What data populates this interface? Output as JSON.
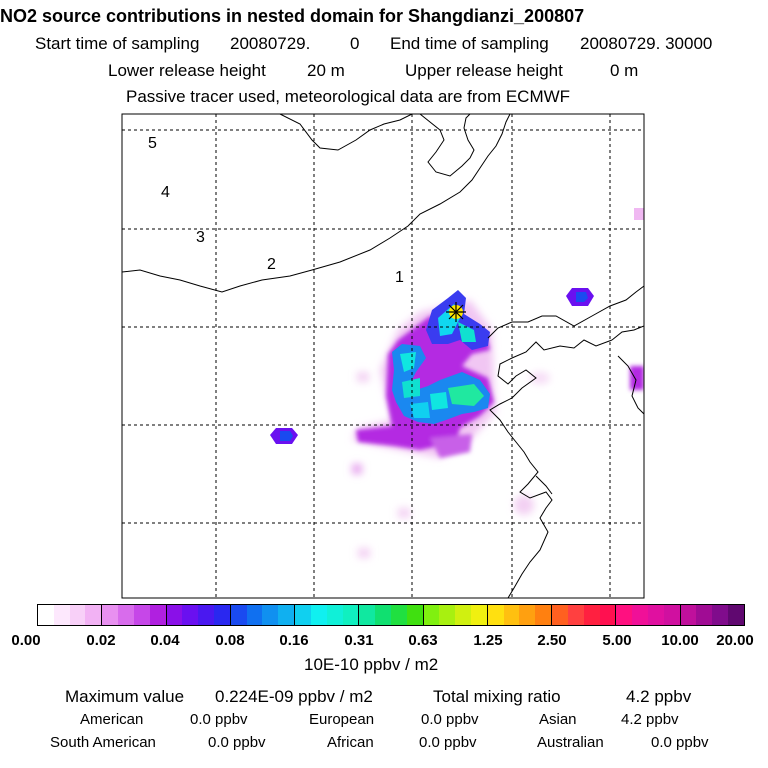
{
  "title": "NO2 source contributions in nested domain for Shangdianzi_200807",
  "header": {
    "start_label": "Start time of sampling",
    "start_value": "20080729.",
    "start_hour": "0",
    "end_label": "End time of sampling",
    "end_value": "20080729. 30000",
    "lower_label": "Lower release height",
    "lower_value": "20 m",
    "upper_label": "Upper release height",
    "upper_value": "0 m",
    "note": "Passive tracer used, meteorological data are from ECMWF"
  },
  "map": {
    "day_markers": [
      "1",
      "2",
      "3",
      "4",
      "5"
    ],
    "release_site_icon": "star-marker-icon"
  },
  "colorbar": {
    "tick_labels": [
      "0.00",
      "0.02",
      "0.04",
      "0.08",
      "0.16",
      "0.31",
      "0.63",
      "1.25",
      "2.50",
      "5.00",
      "10.00",
      "20.00"
    ],
    "unit": "10E-10 ppbv / m2",
    "segment_colors": [
      [
        "#ffffff",
        "#fde8fd",
        "#f8d0f8",
        "#f2b2f4"
      ],
      [
        "#e890f0",
        "#d86cec",
        "#c647e8",
        "#b020e0"
      ],
      [
        "#8a10e8",
        "#6a10f0",
        "#4a18f0",
        "#2a28f0"
      ],
      [
        "#1a4af0",
        "#1070f0",
        "#1090f0",
        "#10b0f0"
      ],
      [
        "#10d0f0",
        "#10f0f0",
        "#10f0d8",
        "#10f0c0"
      ],
      [
        "#10e8a0",
        "#10e070",
        "#20e040",
        "#40e010"
      ],
      [
        "#80f010",
        "#a8f010",
        "#d0f010",
        "#f0f010"
      ],
      [
        "#ffe010",
        "#ffc010",
        "#ffa010",
        "#ff8010"
      ],
      [
        "#ff6020",
        "#ff4040",
        "#ff2040",
        "#ff1050"
      ],
      [
        "#ff1080",
        "#f01098",
        "#e010a0",
        "#d010a0"
      ],
      [
        "#c0109c",
        "#a00c94",
        "#800c8c",
        "#600870"
      ]
    ]
  },
  "stats": {
    "max_label": "Maximum value",
    "max_value": "0.224E-09 ppbv / m2",
    "total_label": "Total mixing ratio",
    "total_value": "4.2 ppbv",
    "regions": [
      {
        "name": "American",
        "value": "0.0 ppbv"
      },
      {
        "name": "European",
        "value": "0.0 ppbv"
      },
      {
        "name": "Asian",
        "value": "4.2 ppbv"
      },
      {
        "name": "South American",
        "value": "0.0 ppbv"
      },
      {
        "name": "African",
        "value": "0.0 ppbv"
      },
      {
        "name": "Australian",
        "value": "0.0 ppbv"
      }
    ]
  }
}
